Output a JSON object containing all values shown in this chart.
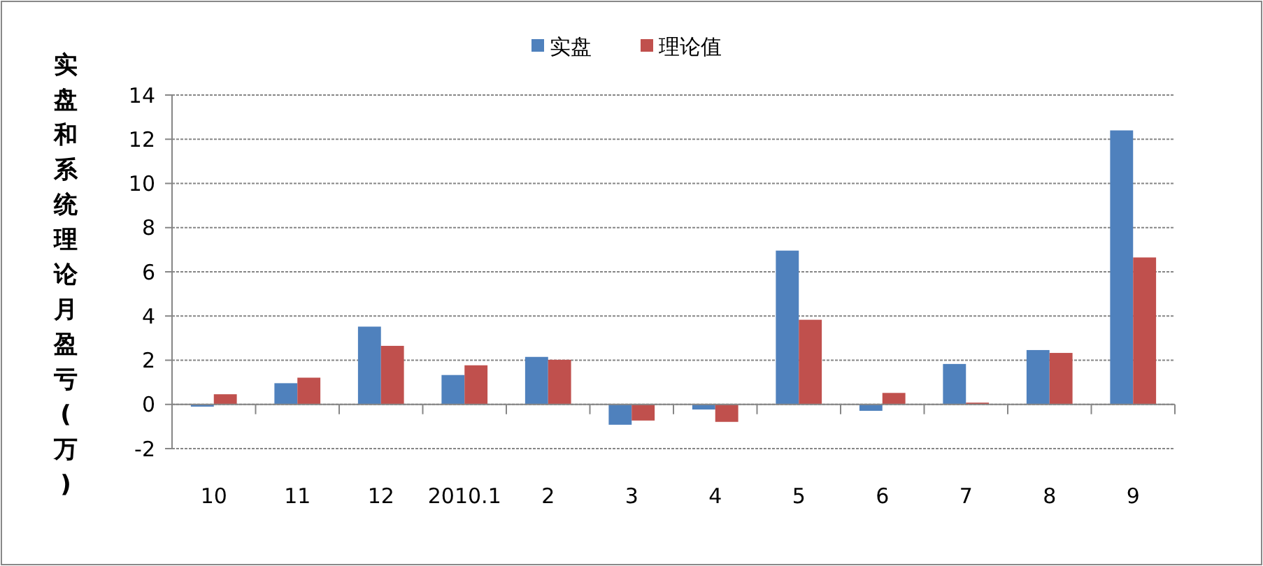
{
  "chart_data": {
    "type": "bar",
    "ylabel": "实盘和系统理论月盈亏(万)",
    "categories": [
      "10",
      "11",
      "12",
      "2010.1",
      "2",
      "3",
      "4",
      "5",
      "6",
      "7",
      "8",
      "9"
    ],
    "series": [
      {
        "name": "实盘",
        "color": "#4f81bd",
        "values": [
          -0.1,
          0.96,
          3.52,
          1.33,
          2.15,
          -0.92,
          -0.23,
          6.96,
          -0.29,
          1.83,
          2.46,
          12.4
        ]
      },
      {
        "name": "理论值",
        "color": "#c0504d",
        "values": [
          0.46,
          1.21,
          2.65,
          1.77,
          2.02,
          -0.73,
          -0.79,
          3.83,
          0.52,
          0.08,
          2.33,
          6.65
        ]
      }
    ],
    "ylim": [
      -2,
      14
    ],
    "yticks": [
      -2,
      0,
      2,
      4,
      6,
      8,
      10,
      12,
      14
    ],
    "grid": "y",
    "legend": "top"
  }
}
